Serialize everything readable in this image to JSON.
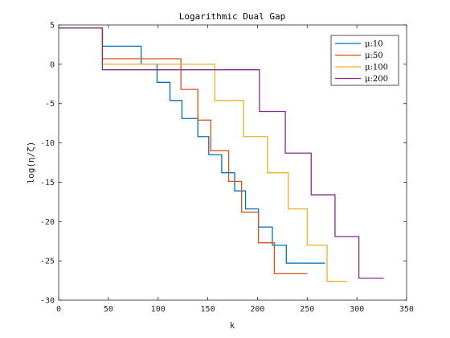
{
  "chart_data": {
    "type": "line",
    "title": "Logarithmic Dual Gap",
    "xlabel": "k",
    "ylabel": "log(η/ζ)",
    "xlim": [
      0,
      350
    ],
    "ylim": [
      -30,
      5
    ],
    "xticks": [
      0,
      50,
      100,
      150,
      200,
      250,
      300,
      350
    ],
    "yticks": [
      -30,
      -25,
      -20,
      -15,
      -10,
      -5,
      0,
      5
    ],
    "xtick_labels": [
      "0",
      "50",
      "100",
      "150",
      "200",
      "250",
      "300",
      "350"
    ],
    "ytick_labels": [
      "-30",
      "-25",
      "-20",
      "-15",
      "-10",
      "-5",
      "0",
      "5"
    ],
    "grid": false,
    "legend_position": "top-right",
    "step_style": "post",
    "series": [
      {
        "name": "μ:10",
        "color": "#0072BD",
        "x": [
          0,
          44,
          83,
          99,
          112,
          124,
          140,
          151,
          164,
          177,
          188,
          201,
          215,
          229,
          243,
          257,
          268
        ],
        "y": [
          4.6,
          2.3,
          0.0,
          -2.3,
          -4.6,
          -6.9,
          -9.2,
          -11.5,
          -13.8,
          -16.1,
          -18.4,
          -20.7,
          -23.0,
          -25.3,
          -25.3,
          -25.3,
          -25.3
        ]
      },
      {
        "name": "μ:50",
        "color": "#D95319",
        "x": [
          0,
          44,
          123,
          140,
          153,
          171,
          184,
          201,
          217,
          232,
          250
        ],
        "y": [
          4.6,
          0.7,
          -3.2,
          -7.1,
          -11.0,
          -14.9,
          -18.8,
          -22.7,
          -26.6,
          -26.6,
          -26.6
        ]
      },
      {
        "name": "μ:100",
        "color": "#EDB120",
        "x": [
          0,
          44,
          157,
          186,
          210,
          231,
          250,
          270,
          290
        ],
        "y": [
          4.6,
          0.0,
          -4.6,
          -9.2,
          -13.8,
          -18.4,
          -23.0,
          -27.6,
          -27.6
        ]
      },
      {
        "name": "μ:200",
        "color": "#7E2F8E",
        "x": [
          0,
          44,
          202,
          228,
          254,
          278,
          302,
          327
        ],
        "y": [
          4.6,
          -0.7,
          -6.0,
          -11.3,
          -16.6,
          -21.9,
          -27.2,
          -27.2
        ]
      }
    ]
  }
}
